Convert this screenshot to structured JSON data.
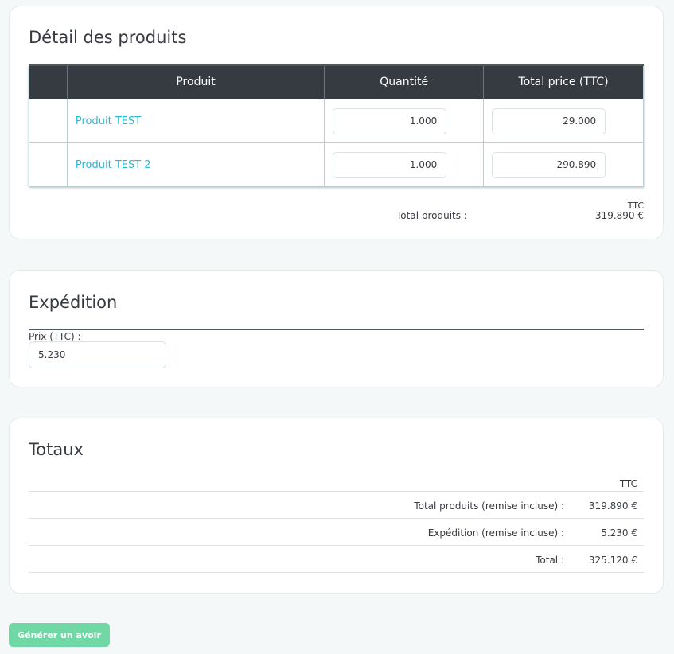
{
  "products": {
    "title": "Détail des produits",
    "columns": [
      "",
      "Produit",
      "Quantité",
      "Total price (TTC)"
    ],
    "rows": [
      {
        "name": "Produit TEST",
        "quantity": "1.000",
        "total": "29.000"
      },
      {
        "name": "Produit TEST 2",
        "quantity": "1.000",
        "total": "290.890"
      }
    ],
    "summary": {
      "ttc_label": "TTC",
      "total_label": "Total produits :",
      "total_value": "319.890 €"
    }
  },
  "shipping": {
    "title": "Expédition",
    "price_label": "Prix (TTC) :",
    "price_value": "5.230"
  },
  "totals": {
    "title": "Totaux",
    "ttc_label": "TTC",
    "rows": [
      {
        "label": "Total produits (remise incluse) :",
        "value": "319.890 €"
      },
      {
        "label": "Expédition (remise incluse) :",
        "value": "5.230 €"
      },
      {
        "label": "Total :",
        "value": "325.120 €"
      }
    ]
  },
  "actions": {
    "generate_label": "Générer un avoir"
  },
  "colors": {
    "link": "#25b9d7",
    "table_header": "#363a41",
    "button": "#70d8a4"
  }
}
